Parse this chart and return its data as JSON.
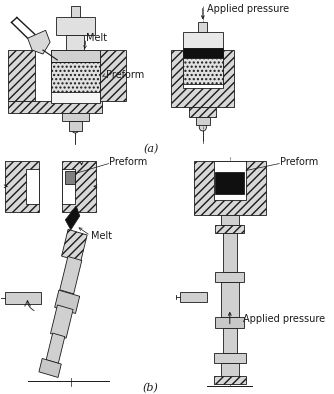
{
  "background_color": "#ffffff",
  "figure_width": 3.34,
  "figure_height": 3.94,
  "dpi": 100,
  "label_a": "(a)",
  "label_b": "(b)",
  "text_melt_top": "Melt",
  "text_preform_top": "Preform",
  "text_applied_pressure_top": "Applied pressure",
  "text_preform_bottom": "Preform",
  "text_melt_bottom": "Melt",
  "text_applied_pressure_bottom": "Applied pressure",
  "line_color": "#1a1a1a",
  "hatch_color": "#555555",
  "fill_light": "#e8e8e8",
  "fill_mid": "#c8c8c8",
  "fill_dark": "#202020",
  "fill_white": "#ffffff",
  "fill_hatch": "#d0d0d0"
}
